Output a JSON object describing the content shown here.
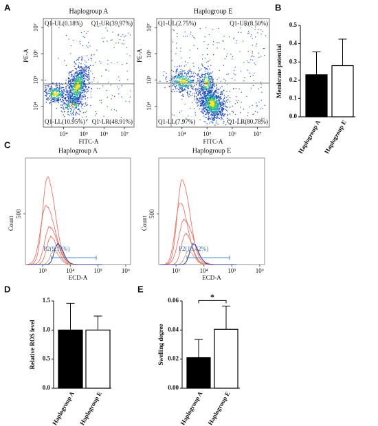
{
  "panel_labels": [
    "A",
    "B",
    "C",
    "D",
    "E"
  ],
  "chart_data": [
    {
      "type": "flow",
      "title": "Haplogroup A",
      "xlabel": "FITC-A",
      "ylabel": "PE-A",
      "xscale": "log",
      "yscale": "log",
      "xlim": [
        1000,
        30000000
      ],
      "ylim": [
        1600,
        22000000
      ],
      "xticks": [
        {
          "value": 10000,
          "label": "10⁴"
        },
        {
          "value": 100000,
          "label": "10⁵"
        },
        {
          "value": 1000000,
          "label": "10⁶"
        },
        {
          "value": 10000000,
          "label": "10⁷"
        }
      ],
      "yticks": [
        {
          "value": 10000,
          "label": "10⁴"
        },
        {
          "value": 100000,
          "label": "10⁵"
        },
        {
          "value": 1000000,
          "label": "10⁶"
        },
        {
          "value": 10000000,
          "label": "10⁷"
        }
      ],
      "quadrants": {
        "UL": "Q1-UL(0.18%)",
        "UR": "Q1-UR(39.97%)",
        "LL": "Q1-LL(10.95%)",
        "LR": "Q1-LR(48.91%)"
      }
    },
    {
      "type": "flow",
      "title": "Haplogroup E",
      "xlabel": "FITC-A",
      "ylabel": "PE-A",
      "xscale": "log",
      "yscale": "log",
      "xlim": [
        1000,
        30000000
      ],
      "ylim": [
        1600,
        22000000
      ],
      "xticks": [
        {
          "value": 10000,
          "label": "10⁴"
        },
        {
          "value": 100000,
          "label": "10⁵"
        },
        {
          "value": 1000000,
          "label": "10⁶"
        },
        {
          "value": 10000000,
          "label": "10⁷"
        }
      ],
      "yticks": [
        {
          "value": 10000,
          "label": "10⁴"
        },
        {
          "value": 100000,
          "label": "10⁵"
        },
        {
          "value": 1000000,
          "label": "10⁶"
        },
        {
          "value": 10000000,
          "label": "10⁷"
        }
      ],
      "quadrants": {
        "UL": "Q1-UL(2.75%)",
        "UR": "Q1-UR(8.50%)",
        "LL": "Q1-LL(7.97%)",
        "LR": "Q1-LR(80.78%)"
      }
    },
    {
      "type": "bar",
      "ylabel": "Membrane potential",
      "categories": [
        "Haplogroup A",
        "Haplogroup E"
      ],
      "values": [
        0.23,
        0.28
      ],
      "errors": [
        0.125,
        0.145
      ],
      "colors": [
        "#000000",
        "#ffffff"
      ],
      "ylim": [
        0,
        0.5
      ],
      "yticks": [
        {
          "value": 0,
          "label": "0.0"
        },
        0.1,
        0.2,
        0.3,
        0.4,
        0.5
      ]
    },
    {
      "type": "histogram",
      "title": "Haplogroup A",
      "xlabel": "ECD-A",
      "ylabel": "Count",
      "xscale": "log",
      "xlim": [
        240,
        1500000
      ],
      "ylim": [
        0,
        1050
      ],
      "xticks": [
        {
          "value": 1000,
          "label": "10³"
        },
        {
          "value": 10000,
          "label": "10⁴"
        },
        {
          "value": 100000,
          "label": "10⁵"
        },
        {
          "value": 1000000,
          "label": "10⁶"
        }
      ],
      "yticks": [
        500
      ],
      "gate": "P2(9.11%)"
    },
    {
      "type": "histogram",
      "title": "Haplogroup E",
      "xlabel": "ECD-A",
      "ylabel": "Count",
      "xscale": "log",
      "xlim": [
        240,
        1500000
      ],
      "ylim": [
        0,
        1050
      ],
      "xticks": [
        {
          "value": 1000,
          "label": "10³"
        },
        {
          "value": 10000,
          "label": "10⁴"
        },
        {
          "value": 100000,
          "label": "10⁵"
        },
        {
          "value": 1000000,
          "label": "10⁶"
        }
      ],
      "yticks": [
        500
      ],
      "gate": "P2(13.42%)"
    },
    {
      "type": "bar",
      "ylabel": "Relative ROS level",
      "categories": [
        "Haplogroup A",
        "Haplogroup E"
      ],
      "values": [
        1.0,
        1.0
      ],
      "errors": [
        0.46,
        0.24
      ],
      "colors": [
        "#000000",
        "#ffffff"
      ],
      "ylim": [
        0,
        1.5
      ],
      "yticks": [
        {
          "value": 0,
          "label": "0.0"
        },
        0.5,
        {
          "value": 1,
          "label": "1.0"
        },
        1.5
      ]
    },
    {
      "type": "bar",
      "ylabel": "Swelling degree",
      "categories": [
        "Haplogroup A",
        "Haplogroup E"
      ],
      "values": [
        0.021,
        0.0405
      ],
      "errors": [
        0.0125,
        0.016
      ],
      "colors": [
        "#000000",
        "#ffffff"
      ],
      "ylim": [
        0,
        0.06
      ],
      "yticks": [
        {
          "value": 0,
          "label": "0.00"
        },
        {
          "value": 0.02,
          "label": "0.02"
        },
        {
          "value": 0.04,
          "label": "0.04"
        },
        {
          "value": 0.06,
          "label": "0.06"
        }
      ],
      "annotation": "*"
    }
  ]
}
